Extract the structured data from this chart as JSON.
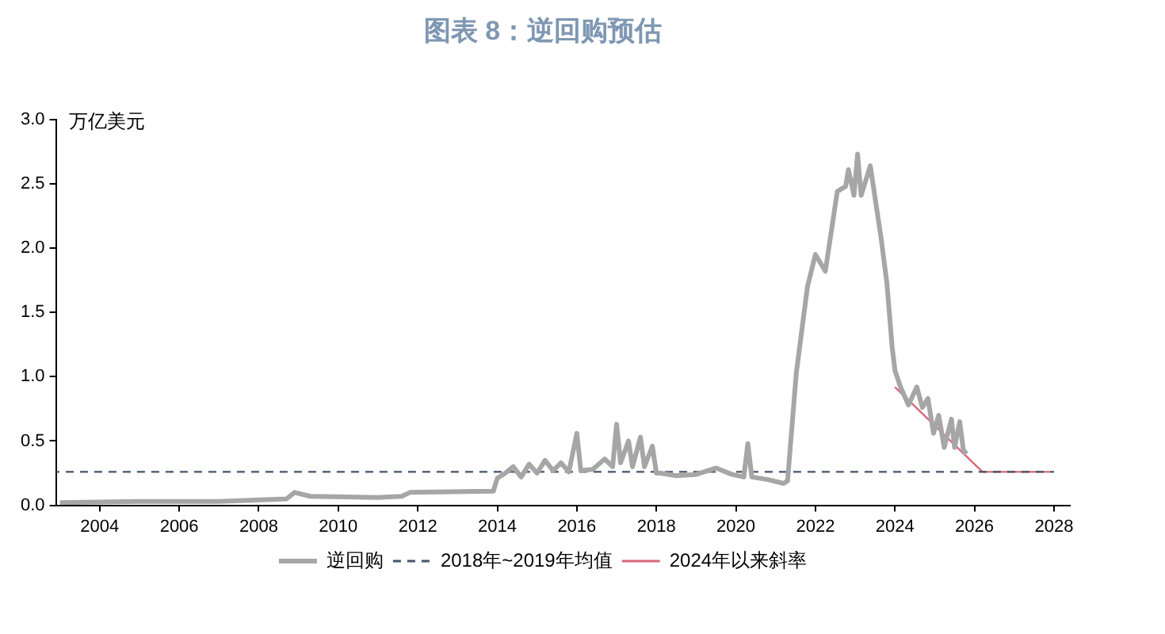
{
  "chart_data": {
    "type": "line",
    "title": "图表 8：逆回购预估",
    "ylabel": "万亿美元",
    "xlim": [
      2002.9,
      2028.4
    ],
    "xticks": [
      2004,
      2006,
      2008,
      2010,
      2012,
      2014,
      2016,
      2018,
      2020,
      2022,
      2024,
      2026,
      2028
    ],
    "ylim": [
      0,
      3.0
    ],
    "yticks": [
      {
        "value": 0,
        "label": "0.0"
      },
      {
        "value": 0.5,
        "label": "0.5"
      },
      {
        "value": 1,
        "label": "1.0"
      },
      {
        "value": 1.5,
        "label": "1.5"
      },
      {
        "value": 2,
        "label": "2.0"
      },
      {
        "value": 2.5,
        "label": "2.5"
      },
      {
        "value": 3,
        "label": "3.0"
      }
    ],
    "grid": false,
    "legend": "bottom",
    "marker": "none",
    "series": [
      {
        "name": "逆回购",
        "color": "#a6a6a6",
        "line_style": "solid",
        "x": [
          2003.0,
          2005.0,
          2007.0,
          2008.7,
          2008.9,
          2009.3,
          2011.0,
          2011.6,
          2011.8,
          2013.9,
          2014.0,
          2014.2,
          2014.4,
          2014.6,
          2014.8,
          2015.0,
          2015.2,
          2015.4,
          2015.6,
          2015.8,
          2016.0,
          2016.1,
          2016.4,
          2016.7,
          2016.9,
          2017.0,
          2017.1,
          2017.3,
          2017.4,
          2017.6,
          2017.7,
          2017.9,
          2018.0,
          2018.1,
          2018.5,
          2019.0,
          2019.5,
          2019.9,
          2020.2,
          2020.3,
          2020.4,
          2020.8,
          2021.2,
          2021.3,
          2021.52,
          2021.8,
          2022.0,
          2022.25,
          2022.55,
          2022.76,
          2022.83,
          2022.97,
          2023.06,
          2023.15,
          2023.38,
          2023.52,
          2023.66,
          2023.8,
          2023.93,
          2024.0,
          2024.14,
          2024.34,
          2024.55,
          2024.69,
          2024.83,
          2024.97,
          2025.1,
          2025.24,
          2025.42,
          2025.5,
          2025.63,
          2025.72,
          2025.8
        ],
        "values": [
          0.02,
          0.03,
          0.03,
          0.05,
          0.1,
          0.07,
          0.06,
          0.07,
          0.1,
          0.11,
          0.21,
          0.25,
          0.3,
          0.22,
          0.32,
          0.25,
          0.35,
          0.27,
          0.33,
          0.26,
          0.56,
          0.27,
          0.28,
          0.36,
          0.3,
          0.63,
          0.33,
          0.5,
          0.3,
          0.53,
          0.3,
          0.46,
          0.25,
          0.25,
          0.23,
          0.24,
          0.29,
          0.24,
          0.22,
          0.48,
          0.22,
          0.2,
          0.17,
          0.19,
          1.03,
          1.7,
          1.95,
          1.82,
          2.44,
          2.48,
          2.61,
          2.41,
          2.73,
          2.41,
          2.64,
          2.35,
          2.06,
          1.72,
          1.23,
          1.05,
          0.92,
          0.78,
          0.92,
          0.76,
          0.83,
          0.56,
          0.7,
          0.45,
          0.67,
          0.45,
          0.65,
          0.43,
          0.4
        ]
      },
      {
        "name": "2018年~2019年均值",
        "color": "#44546a",
        "line_style": "dashed",
        "x": [
          2002.9,
          2028.0
        ],
        "values": [
          0.26,
          0.26
        ]
      },
      {
        "name": "2024年以来斜率",
        "color": "#d9687a",
        "line_style": "solid",
        "x": [
          2024.0,
          2026.2,
          2027.9
        ],
        "values": [
          0.92,
          0.26,
          0.26
        ]
      }
    ]
  }
}
